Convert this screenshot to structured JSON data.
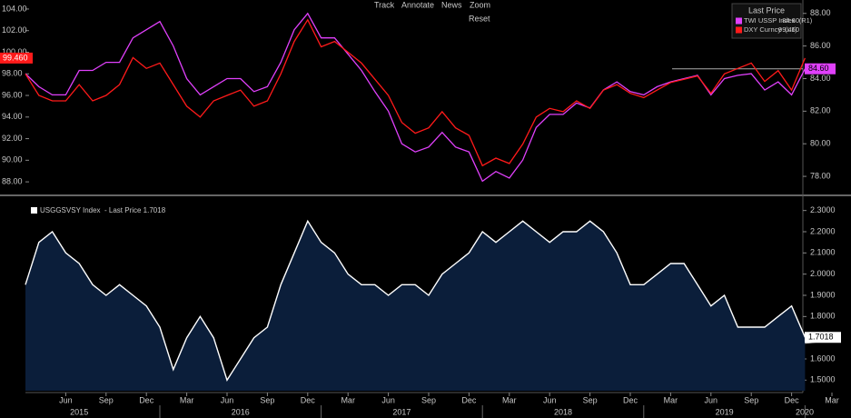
{
  "toolbar": [
    "Track",
    "Annotate",
    "News",
    "Zoom"
  ],
  "reset": "Reset",
  "chart_data": [
    {
      "type": "line",
      "legend_title": "Last Price",
      "x": [
        "2015-03",
        "2015-04",
        "2015-05",
        "2015-06",
        "2015-07",
        "2015-08",
        "2015-09",
        "2015-10",
        "2015-11",
        "2015-12",
        "2016-01",
        "2016-02",
        "2016-03",
        "2016-04",
        "2016-05",
        "2016-06",
        "2016-07",
        "2016-08",
        "2016-09",
        "2016-10",
        "2016-11",
        "2016-12",
        "2017-01",
        "2017-02",
        "2017-03",
        "2017-04",
        "2017-05",
        "2017-06",
        "2017-07",
        "2017-08",
        "2017-09",
        "2017-10",
        "2017-11",
        "2017-12",
        "2018-01",
        "2018-02",
        "2018-03",
        "2018-04",
        "2018-05",
        "2018-06",
        "2018-07",
        "2018-08",
        "2018-09",
        "2018-10",
        "2018-11",
        "2018-12",
        "2019-01",
        "2019-02",
        "2019-03",
        "2019-04",
        "2019-05",
        "2019-06",
        "2019-07",
        "2019-08",
        "2019-09",
        "2019-10",
        "2019-11",
        "2019-12",
        "2020-01"
      ],
      "series": [
        {
          "name": "TWI USSP Index  (R1)",
          "color": "#e040fb",
          "axis": "y2",
          "last_label": "84.60",
          "values": [
            84.3,
            83.5,
            83,
            83,
            84.5,
            84.5,
            85,
            85,
            86.5,
            87,
            87.5,
            86,
            84,
            83,
            83.5,
            84,
            84,
            83.2,
            83.5,
            85,
            87,
            88,
            86.5,
            86.5,
            85.5,
            84.5,
            83.2,
            82,
            80,
            79.5,
            79.8,
            80.7,
            79.8,
            79.5,
            77.7,
            78.3,
            77.9,
            79,
            81,
            81.8,
            81.8,
            82.5,
            82.2,
            83.3,
            83.8,
            83.2,
            83,
            83.5,
            83.8,
            84,
            84.2,
            83,
            84,
            84.2,
            84.3,
            83.3,
            83.8,
            83,
            84.6
          ]
        },
        {
          "name": "DXY Curncy  (L1)",
          "color": "#ff1a1a",
          "axis": "y",
          "last_label": "99.460",
          "values": [
            98,
            96,
            95.5,
            95.5,
            97,
            95.5,
            96,
            97,
            99.5,
            98.5,
            99,
            97,
            95,
            94,
            95.5,
            96,
            96.5,
            95,
            95.5,
            98,
            101,
            103,
            100.5,
            101,
            100,
            99,
            97.5,
            96,
            93.5,
            92.5,
            93,
            94.5,
            93,
            92.3,
            89.5,
            90.2,
            89.7,
            91.5,
            94,
            94.8,
            94.5,
            95.5,
            94.8,
            96.5,
            97,
            96.2,
            95.8,
            96.5,
            97.2,
            97.5,
            97.8,
            96.2,
            98,
            98.5,
            99,
            97.3,
            98.3,
            96.5,
            99.46
          ]
        }
      ],
      "ylim": [
        87,
        104.5
      ],
      "yticks": [
        {
          "value": 88,
          "label": "88.00"
        },
        {
          "value": 90,
          "label": "90.00"
        },
        {
          "value": 92,
          "label": "92.00"
        },
        {
          "value": 94,
          "label": "94.00"
        },
        {
          "value": 96,
          "label": "96.00"
        },
        {
          "value": 98,
          "label": "98.00"
        },
        {
          "value": 100,
          "label": "100.00"
        },
        {
          "value": 102,
          "label": "102.00"
        },
        {
          "value": 104,
          "label": "104.00"
        }
      ],
      "y2lim": [
        77,
        88.6
      ],
      "y2ticks": [
        {
          "value": 78,
          "label": "78.00"
        },
        {
          "value": 80,
          "label": "80.00"
        },
        {
          "value": 82,
          "label": "82.00"
        },
        {
          "value": 84,
          "label": "84.00"
        },
        {
          "value": 86,
          "label": "86.00"
        },
        {
          "value": 88,
          "label": "88.00"
        }
      ]
    },
    {
      "type": "area",
      "x": [
        "2015-03",
        "2015-04",
        "2015-05",
        "2015-06",
        "2015-07",
        "2015-08",
        "2015-09",
        "2015-10",
        "2015-11",
        "2015-12",
        "2016-01",
        "2016-02",
        "2016-03",
        "2016-04",
        "2016-05",
        "2016-06",
        "2016-07",
        "2016-08",
        "2016-09",
        "2016-10",
        "2016-11",
        "2016-12",
        "2017-01",
        "2017-02",
        "2017-03",
        "2017-04",
        "2017-05",
        "2017-06",
        "2017-07",
        "2017-08",
        "2017-09",
        "2017-10",
        "2017-11",
        "2017-12",
        "2018-01",
        "2018-02",
        "2018-03",
        "2018-04",
        "2018-05",
        "2018-06",
        "2018-07",
        "2018-08",
        "2018-09",
        "2018-10",
        "2018-11",
        "2018-12",
        "2019-01",
        "2019-02",
        "2019-03",
        "2019-04",
        "2019-05",
        "2019-06",
        "2019-07",
        "2019-08",
        "2019-09",
        "2019-10",
        "2019-11",
        "2019-12",
        "2020-01"
      ],
      "series": [
        {
          "name": "USGGSVSY Index  - Last Price 1.7018",
          "color": "#ffffff",
          "fill": "#0b1e3a",
          "last_label": "1.7018",
          "values": [
            1.95,
            2.15,
            2.2,
            2.1,
            2.05,
            1.95,
            1.9,
            1.95,
            1.9,
            1.85,
            1.75,
            1.55,
            1.7,
            1.8,
            1.7,
            1.5,
            1.6,
            1.7,
            1.75,
            1.95,
            2.1,
            2.25,
            2.15,
            2.1,
            2.0,
            1.95,
            1.95,
            1.9,
            1.95,
            1.95,
            1.9,
            2.0,
            2.05,
            2.1,
            2.2,
            2.15,
            2.2,
            2.25,
            2.2,
            2.15,
            2.2,
            2.2,
            2.25,
            2.2,
            2.1,
            1.95,
            1.95,
            2.0,
            2.05,
            2.05,
            1.95,
            1.85,
            1.9,
            1.75,
            1.75,
            1.75,
            1.8,
            1.85,
            1.7018
          ]
        }
      ],
      "ylim": [
        1.45,
        2.35
      ],
      "yticks": [
        {
          "value": 1.5,
          "label": "1.5000"
        },
        {
          "value": 1.6,
          "label": "1.6000"
        },
        {
          "value": 1.7,
          "label": "1.7000"
        },
        {
          "value": 1.8,
          "label": "1.8000"
        },
        {
          "value": 1.9,
          "label": "1.9000"
        },
        {
          "value": 2.0,
          "label": "2.0000"
        },
        {
          "value": 2.1,
          "label": "2.1000"
        },
        {
          "value": 2.2,
          "label": "2.2000"
        },
        {
          "value": 2.3,
          "label": "2.3000"
        }
      ],
      "xticks": [
        {
          "value": "2015-06",
          "label": "Jun"
        },
        {
          "value": "2015-09",
          "label": "Sep"
        },
        {
          "value": "2015-12",
          "label": "Dec"
        },
        {
          "value": "2016-03",
          "label": "Mar"
        },
        {
          "value": "2016-06",
          "label": "Jun"
        },
        {
          "value": "2016-09",
          "label": "Sep"
        },
        {
          "value": "2016-12",
          "label": "Dec"
        },
        {
          "value": "2017-03",
          "label": "Mar"
        },
        {
          "value": "2017-06",
          "label": "Jun"
        },
        {
          "value": "2017-09",
          "label": "Sep"
        },
        {
          "value": "2017-12",
          "label": "Dec"
        },
        {
          "value": "2018-03",
          "label": "Mar"
        },
        {
          "value": "2018-06",
          "label": "Jun"
        },
        {
          "value": "2018-09",
          "label": "Sep"
        },
        {
          "value": "2018-12",
          "label": "Dec"
        },
        {
          "value": "2019-03",
          "label": "Mar"
        },
        {
          "value": "2019-06",
          "label": "Jun"
        },
        {
          "value": "2019-09",
          "label": "Sep"
        },
        {
          "value": "2019-12",
          "label": "Dec"
        },
        {
          "value": "2020-03",
          "label": "Mar"
        }
      ],
      "year_labels": [
        "2015",
        "2016",
        "2017",
        "2018",
        "2019",
        "2020"
      ]
    }
  ]
}
